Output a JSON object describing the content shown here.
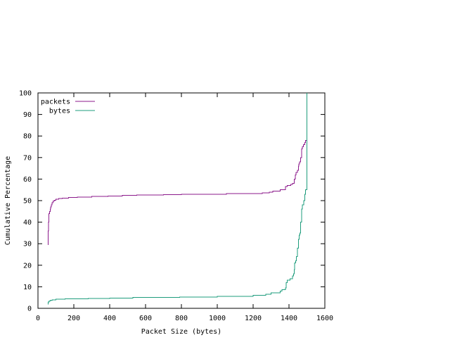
{
  "chart_data": {
    "type": "line",
    "title": "",
    "xlabel": "Packet Size (bytes)",
    "ylabel": "Cumulative Percentage",
    "xlim": [
      0,
      1600
    ],
    "ylim": [
      0,
      100
    ],
    "xticks": [
      0,
      200,
      400,
      600,
      800,
      1000,
      1200,
      1400,
      1600
    ],
    "yticks": [
      0,
      10,
      20,
      30,
      40,
      50,
      60,
      70,
      80,
      90,
      100
    ],
    "grid": false,
    "legend_position": "top-left",
    "series": [
      {
        "name": "packets",
        "color": "#8b1a8b",
        "step": true,
        "points": [
          [
            54,
            29.5
          ],
          [
            57,
            29.5
          ],
          [
            57,
            36
          ],
          [
            59,
            36
          ],
          [
            59,
            40
          ],
          [
            60,
            40
          ],
          [
            60,
            44
          ],
          [
            64,
            44
          ],
          [
            64,
            45
          ],
          [
            68,
            45
          ],
          [
            68,
            46
          ],
          [
            70,
            46
          ],
          [
            70,
            47
          ],
          [
            74,
            47
          ],
          [
            74,
            48
          ],
          [
            78,
            48
          ],
          [
            78,
            49
          ],
          [
            85,
            49
          ],
          [
            85,
            49.8
          ],
          [
            92,
            49.8
          ],
          [
            92,
            50.2
          ],
          [
            100,
            50.2
          ],
          [
            100,
            50.6
          ],
          [
            115,
            50.6
          ],
          [
            115,
            50.9
          ],
          [
            135,
            50.9
          ],
          [
            135,
            51.2
          ],
          [
            170,
            51.2
          ],
          [
            170,
            51.5
          ],
          [
            220,
            51.5
          ],
          [
            220,
            51.7
          ],
          [
            300,
            51.7
          ],
          [
            300,
            52
          ],
          [
            390,
            52
          ],
          [
            390,
            52.2
          ],
          [
            470,
            52.2
          ],
          [
            470,
            52.4
          ],
          [
            550,
            52.4
          ],
          [
            550,
            52.6
          ],
          [
            700,
            52.6
          ],
          [
            700,
            52.8
          ],
          [
            800,
            52.8
          ],
          [
            800,
            53
          ],
          [
            1050,
            53
          ],
          [
            1050,
            53.3
          ],
          [
            1250,
            53.3
          ],
          [
            1250,
            53.6
          ],
          [
            1290,
            53.6
          ],
          [
            1290,
            54
          ],
          [
            1310,
            54
          ],
          [
            1310,
            54.4
          ],
          [
            1350,
            54.4
          ],
          [
            1350,
            55
          ],
          [
            1380,
            55
          ],
          [
            1380,
            56.5
          ],
          [
            1390,
            56.5
          ],
          [
            1390,
            57
          ],
          [
            1410,
            57
          ],
          [
            1410,
            57.5
          ],
          [
            1420,
            57.5
          ],
          [
            1420,
            58
          ],
          [
            1430,
            58
          ],
          [
            1430,
            60
          ],
          [
            1435,
            60
          ],
          [
            1435,
            62
          ],
          [
            1440,
            62
          ],
          [
            1440,
            63
          ],
          [
            1448,
            63
          ],
          [
            1448,
            64
          ],
          [
            1452,
            64
          ],
          [
            1452,
            66
          ],
          [
            1455,
            66
          ],
          [
            1455,
            67
          ],
          [
            1458,
            67
          ],
          [
            1458,
            68
          ],
          [
            1465,
            68
          ],
          [
            1465,
            70
          ],
          [
            1470,
            70
          ],
          [
            1470,
            74
          ],
          [
            1475,
            74
          ],
          [
            1475,
            75
          ],
          [
            1480,
            75
          ],
          [
            1480,
            76
          ],
          [
            1488,
            76
          ],
          [
            1488,
            77
          ],
          [
            1492,
            77
          ],
          [
            1492,
            78
          ],
          [
            1500,
            78
          ],
          [
            1500,
            100
          ]
        ]
      },
      {
        "name": "bytes",
        "color": "#1e9c7c",
        "step": true,
        "points": [
          [
            54,
            2
          ],
          [
            57,
            2
          ],
          [
            57,
            3
          ],
          [
            62,
            3
          ],
          [
            62,
            3.5
          ],
          [
            70,
            3.5
          ],
          [
            70,
            3.8
          ],
          [
            80,
            3.8
          ],
          [
            80,
            4
          ],
          [
            100,
            4
          ],
          [
            100,
            4.2
          ],
          [
            150,
            4.2
          ],
          [
            150,
            4.4
          ],
          [
            280,
            4.4
          ],
          [
            280,
            4.6
          ],
          [
            400,
            4.6
          ],
          [
            400,
            4.8
          ],
          [
            530,
            4.8
          ],
          [
            530,
            5
          ],
          [
            790,
            5
          ],
          [
            790,
            5.3
          ],
          [
            1000,
            5.3
          ],
          [
            1000,
            5.6
          ],
          [
            1200,
            5.6
          ],
          [
            1200,
            6
          ],
          [
            1270,
            6
          ],
          [
            1270,
            6.6
          ],
          [
            1300,
            6.6
          ],
          [
            1300,
            7.2
          ],
          [
            1350,
            7.2
          ],
          [
            1350,
            8
          ],
          [
            1360,
            8
          ],
          [
            1360,
            8.6
          ],
          [
            1380,
            8.6
          ],
          [
            1380,
            9.5
          ],
          [
            1385,
            9.5
          ],
          [
            1385,
            12
          ],
          [
            1390,
            12
          ],
          [
            1390,
            13
          ],
          [
            1405,
            13
          ],
          [
            1405,
            13.8
          ],
          [
            1420,
            13.8
          ],
          [
            1420,
            15
          ],
          [
            1425,
            15
          ],
          [
            1425,
            16
          ],
          [
            1430,
            16
          ],
          [
            1430,
            18
          ],
          [
            1432,
            18
          ],
          [
            1432,
            21
          ],
          [
            1438,
            21
          ],
          [
            1438,
            22
          ],
          [
            1442,
            22
          ],
          [
            1442,
            24
          ],
          [
            1448,
            24
          ],
          [
            1448,
            28
          ],
          [
            1452,
            28
          ],
          [
            1452,
            32
          ],
          [
            1456,
            32
          ],
          [
            1456,
            34
          ],
          [
            1460,
            34
          ],
          [
            1460,
            35
          ],
          [
            1465,
            35
          ],
          [
            1465,
            40
          ],
          [
            1470,
            40
          ],
          [
            1470,
            46
          ],
          [
            1475,
            46
          ],
          [
            1475,
            48
          ],
          [
            1482,
            48
          ],
          [
            1482,
            50
          ],
          [
            1488,
            50
          ],
          [
            1488,
            53
          ],
          [
            1492,
            53
          ],
          [
            1492,
            55
          ],
          [
            1500,
            55
          ],
          [
            1500,
            100
          ]
        ]
      }
    ]
  }
}
